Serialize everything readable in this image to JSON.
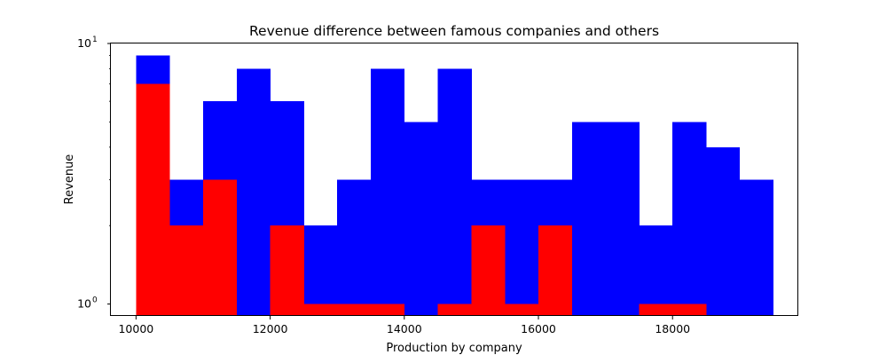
{
  "chart_data": {
    "type": "bar",
    "title": "Revenue difference between famous companies and others",
    "xlabel": "Production by company",
    "ylabel": "Revenue",
    "yscale": "log",
    "xlim": [
      9625,
      19875
    ],
    "ylim": [
      0.9,
      10
    ],
    "grid": false,
    "bin_edges": [
      10000,
      10500,
      11000,
      11500,
      12000,
      12500,
      13000,
      13500,
      14000,
      14500,
      15000,
      15500,
      16000,
      16500,
      17000,
      17500,
      18000,
      18500,
      19000,
      19500
    ],
    "x_ticks": [
      10000,
      12000,
      14000,
      16000,
      18000
    ],
    "y_tick_labels": [
      {
        "base": "10",
        "exp": "0",
        "value": 1
      },
      {
        "base": "10",
        "exp": "1",
        "value": 10
      }
    ],
    "series": [
      {
        "color": "#0000ff",
        "values": [
          9,
          3,
          6,
          8,
          6,
          2,
          3,
          8,
          5,
          8,
          3,
          3,
          3,
          5,
          5,
          2,
          5,
          4,
          3
        ]
      },
      {
        "color": "#ff0000",
        "values": [
          7,
          2,
          3,
          0,
          2,
          1,
          1,
          1,
          0,
          1,
          2,
          1,
          2,
          0,
          0,
          1,
          1,
          0,
          0
        ]
      }
    ]
  }
}
